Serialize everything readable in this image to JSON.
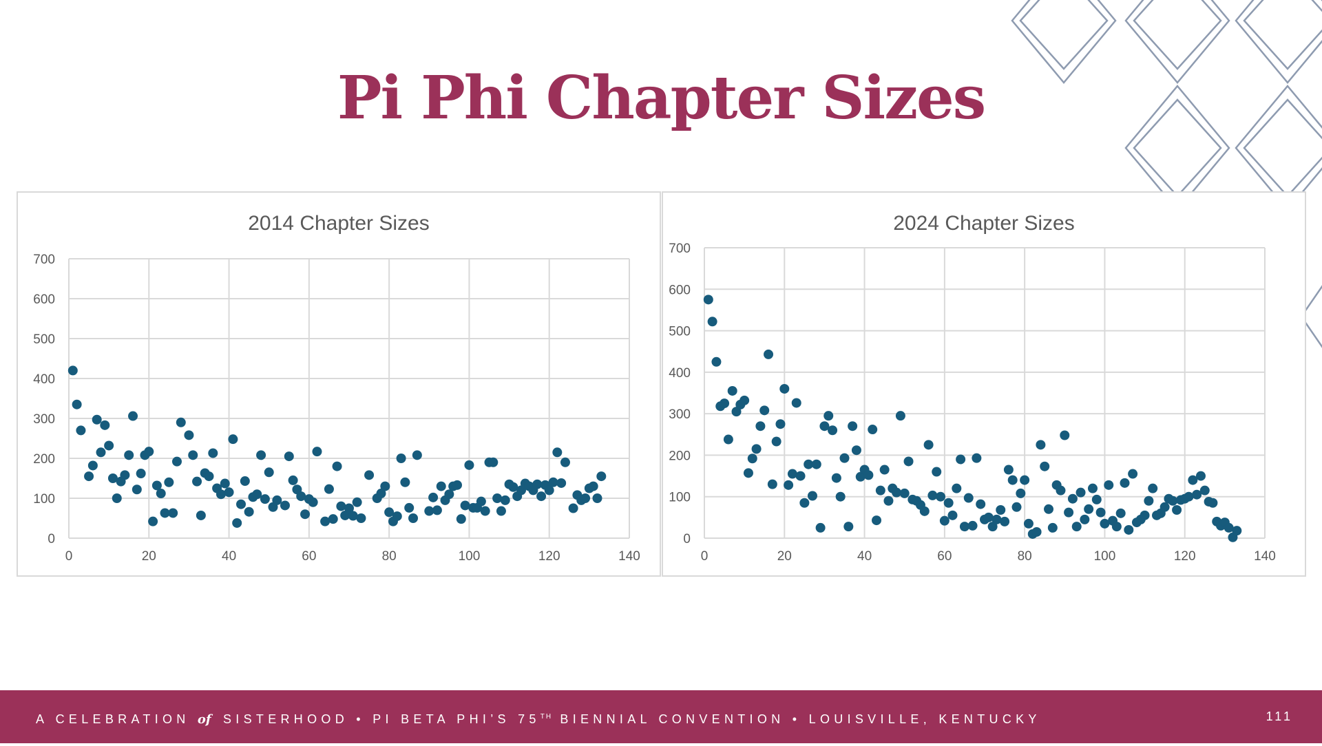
{
  "slide": {
    "title": "Pi Phi Chapter Sizes",
    "footer": {
      "part1": "A CELEBRATION",
      "of": "of",
      "part2": "SISTERHOOD • PI BETA PHI’S 75",
      "sup": "TH",
      "part3": "BIENNIAL CONVENTION • LOUISVILLE, KENTUCKY"
    },
    "page_number": "111"
  },
  "colors": {
    "accent": "#9b3159",
    "marker": "#175b7c",
    "deco": "#8e9bb0"
  },
  "chart_data": [
    {
      "type": "scatter",
      "title": "2014 Chapter Sizes",
      "xlim": [
        0,
        140
      ],
      "ylim": [
        0,
        700
      ],
      "xticks": [
        "0",
        "20",
        "40",
        "60",
        "80",
        "100",
        "120",
        "140"
      ],
      "yticks": [
        "0",
        "100",
        "200",
        "300",
        "400",
        "500",
        "600",
        "700"
      ],
      "grid": true,
      "legend": "none",
      "x": [
        1,
        2,
        3,
        5,
        6,
        7,
        8,
        9,
        10,
        11,
        12,
        13,
        14,
        15,
        16,
        17,
        18,
        19,
        20,
        21,
        22,
        23,
        24,
        25,
        26,
        27,
        28,
        30,
        31,
        32,
        33,
        34,
        35,
        36,
        37,
        38,
        39,
        40,
        41,
        42,
        43,
        44,
        45,
        46,
        47,
        48,
        49,
        50,
        51,
        52,
        54,
        55,
        56,
        57,
        58,
        59,
        60,
        61,
        62,
        64,
        65,
        66,
        67,
        68,
        69,
        70,
        71,
        72,
        73,
        75,
        77,
        78,
        79,
        80,
        81,
        82,
        83,
        84,
        85,
        86,
        87,
        90,
        91,
        92,
        93,
        94,
        95,
        96,
        97,
        98,
        99,
        100,
        101,
        102,
        103,
        104,
        105,
        106,
        107,
        108,
        109,
        110,
        111,
        112,
        113,
        114,
        115,
        116,
        117,
        118,
        119,
        120,
        121,
        122,
        123,
        124,
        126,
        127,
        128,
        129,
        130,
        131,
        132,
        133
      ],
      "y": [
        420,
        335,
        270,
        155,
        182,
        297,
        215,
        283,
        232,
        150,
        100,
        142,
        158,
        208,
        306,
        122,
        162,
        208,
        217,
        42,
        132,
        112,
        63,
        140,
        63,
        192,
        290,
        258,
        208,
        142,
        57,
        163,
        155,
        213,
        125,
        110,
        137,
        115,
        248,
        38,
        85,
        143,
        66,
        103,
        110,
        208,
        98,
        165,
        78,
        95,
        82,
        205,
        145,
        122,
        105,
        60,
        98,
        90,
        217,
        42,
        123,
        48,
        180,
        80,
        57,
        75,
        56,
        90,
        50,
        158,
        100,
        112,
        130,
        65,
        42,
        55,
        200,
        140,
        76,
        50,
        208,
        68,
        102,
        70,
        130,
        95,
        110,
        130,
        133,
        48,
        82,
        183,
        76,
        76,
        92,
        68,
        190,
        190,
        100,
        68,
        95,
        135,
        128,
        105,
        120,
        137,
        130,
        120,
        135,
        105,
        133,
        120,
        140,
        215,
        138,
        190,
        75,
        108,
        95,
        100,
        125,
        130,
        100,
        155
      ]
    },
    {
      "type": "scatter",
      "title": "2024 Chapter Sizes",
      "xlim": [
        0,
        140
      ],
      "ylim": [
        0,
        700
      ],
      "xticks": [
        "0",
        "20",
        "40",
        "60",
        "80",
        "100",
        "120",
        "140"
      ],
      "yticks": [
        "0",
        "100",
        "200",
        "300",
        "400",
        "500",
        "600",
        "700"
      ],
      "grid": true,
      "legend": "none",
      "x": [
        1,
        2,
        3,
        4,
        5,
        6,
        7,
        8,
        9,
        10,
        11,
        12,
        13,
        14,
        15,
        16,
        17,
        18,
        19,
        20,
        21,
        22,
        23,
        24,
        25,
        26,
        27,
        28,
        29,
        30,
        31,
        32,
        33,
        34,
        35,
        36,
        37,
        38,
        39,
        40,
        41,
        42,
        43,
        44,
        45,
        46,
        47,
        48,
        49,
        50,
        51,
        52,
        53,
        54,
        55,
        56,
        57,
        58,
        59,
        60,
        61,
        62,
        63,
        64,
        65,
        66,
        67,
        68,
        69,
        70,
        71,
        72,
        73,
        74,
        75,
        76,
        77,
        78,
        79,
        80,
        81,
        82,
        83,
        84,
        85,
        86,
        87,
        88,
        89,
        90,
        91,
        92,
        93,
        94,
        95,
        96,
        97,
        98,
        99,
        100,
        101,
        102,
        103,
        104,
        105,
        106,
        107,
        108,
        109,
        110,
        111,
        112,
        113,
        114,
        115,
        116,
        117,
        118,
        119,
        120,
        121,
        122,
        123,
        124,
        125,
        126,
        127,
        128,
        129,
        130,
        131,
        132,
        133
      ],
      "y": [
        575,
        522,
        425,
        318,
        325,
        238,
        355,
        305,
        322,
        332,
        157,
        192,
        215,
        270,
        308,
        443,
        130,
        233,
        275,
        360,
        128,
        155,
        326,
        150,
        85,
        178,
        102,
        178,
        25,
        270,
        295,
        260,
        145,
        100,
        193,
        28,
        270,
        212,
        148,
        165,
        152,
        262,
        43,
        115,
        165,
        90,
        120,
        110,
        295,
        108,
        185,
        93,
        90,
        80,
        65,
        225,
        103,
        160,
        100,
        42,
        85,
        55,
        120,
        190,
        28,
        97,
        30,
        193,
        82,
        45,
        50,
        28,
        45,
        68,
        40,
        165,
        140,
        75,
        108,
        140,
        35,
        10,
        15,
        225,
        173,
        70,
        25,
        128,
        115,
        248,
        62,
        95,
        28,
        110,
        45,
        70,
        120,
        93,
        62,
        35,
        128,
        42,
        28,
        60,
        133,
        20,
        155,
        38,
        45,
        55,
        90,
        120,
        55,
        60,
        75,
        95,
        90,
        68,
        92,
        95,
        100,
        140,
        105,
        150,
        115,
        88,
        85,
        40,
        30,
        38,
        25,
        2,
        18
      ]
    }
  ]
}
